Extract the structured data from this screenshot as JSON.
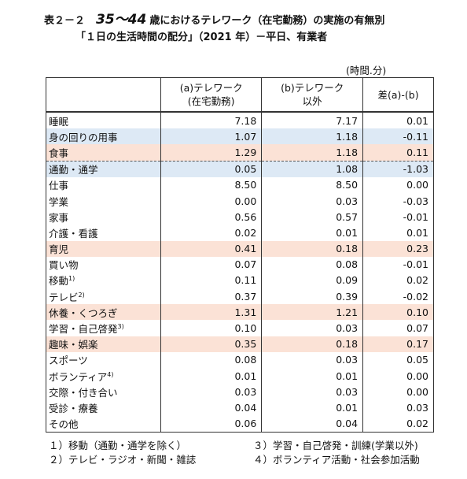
{
  "header": {
    "prefix": "表２－２",
    "age": "35～44",
    "title": "歳におけるテレワーク（在宅勤務）の実施の有無別",
    "subtitle": "「１日の生活時間の配分」（2021 年）－平日、有業者",
    "unit": "(時間.分)"
  },
  "table": {
    "columns": [
      [
        "(a)テレワーク",
        "(在宅勤務)"
      ],
      [
        "(b)テレワーク",
        "以外"
      ],
      [
        "差(a)-(b)"
      ]
    ],
    "rows": [
      {
        "label": "睡眠",
        "cells": [
          "7.18",
          "7.17",
          "0.01"
        ]
      },
      {
        "label": "身の回りの用事",
        "cells": [
          "1.07",
          "1.18",
          "-0.11"
        ],
        "highlight": "#dde9f5"
      },
      {
        "label": "食事",
        "cells": [
          "1.29",
          "1.18",
          "0.11"
        ],
        "highlight": "#fbe2d6"
      },
      {
        "label": "通勤・通学",
        "cells": [
          "0.05",
          "1.08",
          "-1.03"
        ],
        "highlight": "#dde9f5"
      },
      {
        "label": "仕事",
        "cells": [
          "8.50",
          "8.50",
          "0.00"
        ]
      },
      {
        "label": "学業",
        "cells": [
          "0.00",
          "0.03",
          "-0.03"
        ]
      },
      {
        "label": "家事",
        "cells": [
          "0.56",
          "0.57",
          "-0.01"
        ]
      },
      {
        "label": "介護・看護",
        "cells": [
          "0.02",
          "0.01",
          "0.01"
        ]
      },
      {
        "label": "育児",
        "cells": [
          "0.41",
          "0.18",
          "0.23"
        ],
        "highlight": "#fbe2d6"
      },
      {
        "label": "買い物",
        "cells": [
          "0.07",
          "0.08",
          "-0.01"
        ]
      },
      {
        "label": "移動",
        "note": "1)",
        "cells": [
          "0.11",
          "0.09",
          "0.02"
        ]
      },
      {
        "label": "テレビ",
        "note": "2)",
        "cells": [
          "0.37",
          "0.39",
          "-0.02"
        ]
      },
      {
        "label": "休養・くつろぎ",
        "cells": [
          "1.31",
          "1.21",
          "0.10"
        ],
        "highlight": "#fbe2d6"
      },
      {
        "label": "学習・自己啓発",
        "note": "3)",
        "cells": [
          "0.10",
          "0.03",
          "0.07"
        ]
      },
      {
        "label": "趣味・娯楽",
        "cells": [
          "0.35",
          "0.18",
          "0.17"
        ],
        "highlight": "#fbe2d6"
      },
      {
        "label": "スポーツ",
        "cells": [
          "0.08",
          "0.03",
          "0.05"
        ]
      },
      {
        "label": "ボランティア",
        "note": "4)",
        "cells": [
          "0.01",
          "0.01",
          "0.00"
        ]
      },
      {
        "label": "交際・付き合い",
        "cells": [
          "0.03",
          "0.03",
          "0.00"
        ]
      },
      {
        "label": "受診・療養",
        "cells": [
          "0.04",
          "0.01",
          "0.03"
        ]
      },
      {
        "label": "その他",
        "cells": [
          "0.06",
          "0.04",
          "0.02"
        ]
      }
    ]
  },
  "footnotes": [
    "１）移動（通勤・通学を除く）",
    "３）学習・自己啓発・訓練(学業以外)",
    "２）テレビ・ラジオ・新聞・雑誌",
    "４）ボランティア活動・社会参加活動"
  ]
}
